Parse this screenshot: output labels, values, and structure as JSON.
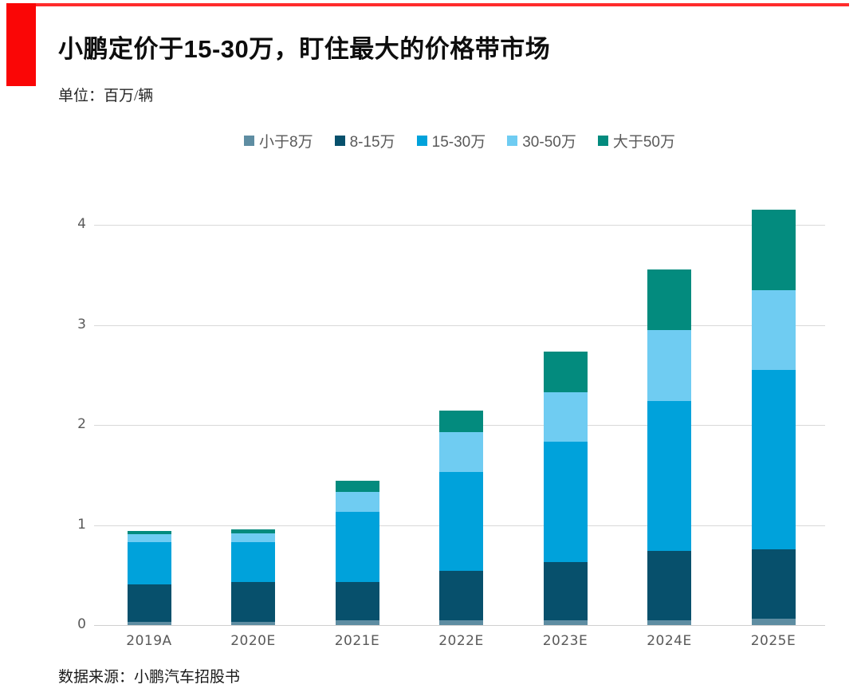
{
  "header": {
    "title": "小鹏定价于15-30万，盯住最大的价格带市场",
    "unit_label": "单位：百万/辆"
  },
  "footer": {
    "source": "数据来源：小鹏汽车招股书"
  },
  "accent": {
    "red_block": "#fa0606",
    "red_rule": "#ff2b2b"
  },
  "chart_data": {
    "type": "bar",
    "stacked": true,
    "title": "小鹏定价于15-30万，盯住最大的价格带市场",
    "ylabel": "单位：百万/辆",
    "xlabel": "",
    "grid": "horizontal",
    "legend_position": "top-center",
    "ylim": [
      0,
      4
    ],
    "yticks": [
      0,
      1,
      2,
      3,
      4
    ],
    "categories": [
      "2019A",
      "2020E",
      "2021E",
      "2022E",
      "2023E",
      "2024E",
      "2025E"
    ],
    "series": [
      {
        "name": "小于8万",
        "color": "#5e8da2",
        "values": [
          0.03,
          0.03,
          0.05,
          0.05,
          0.05,
          0.05,
          0.06
        ]
      },
      {
        "name": "8-15万",
        "color": "#07506c",
        "values": [
          0.38,
          0.4,
          0.38,
          0.49,
          0.58,
          0.69,
          0.7
        ]
      },
      {
        "name": "15-30万",
        "color": "#00a2db",
        "values": [
          0.42,
          0.4,
          0.7,
          0.99,
          1.2,
          1.5,
          1.79
        ]
      },
      {
        "name": "30-50万",
        "color": "#6fccf2",
        "values": [
          0.08,
          0.09,
          0.2,
          0.4,
          0.5,
          0.71,
          0.8
        ]
      },
      {
        "name": "大于50万",
        "color": "#038b7e",
        "values": [
          0.03,
          0.04,
          0.11,
          0.21,
          0.4,
          0.6,
          0.8
        ]
      }
    ],
    "totals": [
      0.94,
      0.96,
      1.44,
      2.14,
      2.73,
      3.55,
      4.15
    ]
  }
}
